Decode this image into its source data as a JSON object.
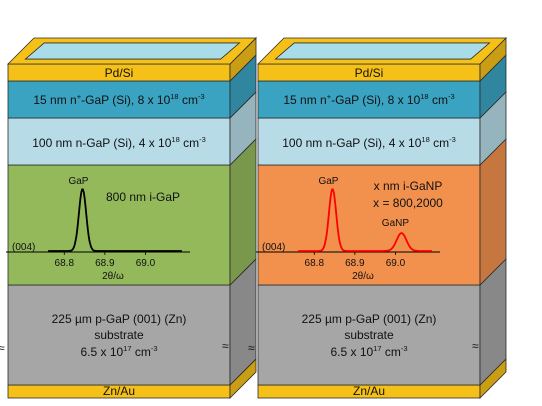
{
  "colors": {
    "contact_gold": "#f5c118",
    "contact_edge": "#8a6d10",
    "window_blue": "#a8dce8",
    "nplus_layer": "#3aa3c2",
    "n_layer": "#b7dce8",
    "i_gap": "#93b95b",
    "i_ganp": "#f2914d",
    "substrate": "#a6a6a6",
    "peak_gap": "#000000",
    "peak_ganp": "#ff0000"
  },
  "stacks": [
    {
      "id": "gap",
      "top_contact": "Pd/Si",
      "nplus_layer": {
        "prefix": "15 nm n",
        "sup1": "+",
        "mid": "-GaP (Si), 8 x 10",
        "sup2": "18",
        "tail": " cm",
        "sup3": "-3"
      },
      "n_layer": {
        "prefix": "100 nm n-GaP (Si), 4 x 10",
        "sup2": "18",
        "tail": " cm",
        "sup3": "-3"
      },
      "active_layer": {
        "line1": "800 nm i-GaP",
        "line2": ""
      },
      "xrd": {
        "reflection": "(004)",
        "xlabel": "2θ/ω",
        "ticks": [
          "68.8",
          "68.9",
          "69.0"
        ],
        "peak_labels": [
          "GaP"
        ]
      },
      "substrate": {
        "line1": "225 µm p-GaP (001) (Zn)",
        "line2": "substrate",
        "line3_prefix": "6.5 x 10",
        "line3_sup": "17",
        "line3_tail": " cm",
        "line3_sup2": "-3"
      },
      "bottom_contact": "Zn/Au",
      "break_symbol": "≈"
    },
    {
      "id": "ganp",
      "top_contact": "Pd/Si",
      "nplus_layer": {
        "prefix": "15 nm n",
        "sup1": "+",
        "mid": "-GaP (Si), 8 x 10",
        "sup2": "18",
        "tail": " cm",
        "sup3": "-3"
      },
      "n_layer": {
        "prefix": "100 nm n-GaP (Si), 4 x 10",
        "sup2": "18",
        "tail": " cm",
        "sup3": "-3"
      },
      "active_layer": {
        "line1": "x nm i-GaNP",
        "line2": "x = 800,2000"
      },
      "xrd": {
        "reflection": "(004)",
        "xlabel": "2θ/ω",
        "ticks": [
          "68.8",
          "68.9",
          "69.0"
        ],
        "peak_labels": [
          "GaP",
          "GaNP"
        ]
      },
      "substrate": {
        "line1": "225 µm p-GaP (001) (Zn)",
        "line2": "substrate",
        "line3_prefix": "6.5 x 10",
        "line3_sup": "17",
        "line3_tail": " cm",
        "line3_sup2": "-3"
      },
      "bottom_contact": "Zn/Au",
      "break_symbol": "≈"
    }
  ]
}
